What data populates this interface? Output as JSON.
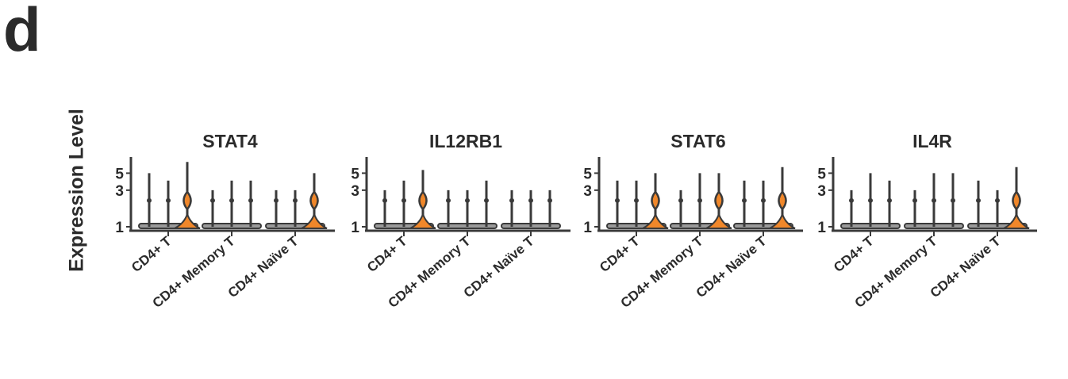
{
  "panel_label": "d",
  "chart_data": {
    "type": "violin",
    "ylabel": "Expression Level",
    "y_scale": "log",
    "y_ticks": [
      1,
      3,
      5
    ],
    "categories": [
      "CD4+ T",
      "CD4+ Memory T",
      "CD4+ Naïve T"
    ],
    "colors": {
      "base": "#3a3a3a",
      "highlight": "#f0872a"
    },
    "panels": [
      {
        "title": "STAT4",
        "groups": [
          {
            "violins": [
              {
                "max": 5,
                "point": 2.2,
                "highlight": false
              },
              {
                "max": 4,
                "point": 2.2,
                "highlight": false
              },
              {
                "max": 7,
                "point": 2.2,
                "highlight": true
              }
            ]
          },
          {
            "violins": [
              {
                "max": 3,
                "point": 2.2,
                "highlight": false
              },
              {
                "max": 4,
                "point": 2.2,
                "highlight": false
              },
              {
                "max": 4,
                "point": 2.2,
                "highlight": false
              }
            ]
          },
          {
            "violins": [
              {
                "max": 3,
                "point": 2.2,
                "highlight": false
              },
              {
                "max": 3,
                "point": 2.2,
                "highlight": false
              },
              {
                "max": 5,
                "point": 2.2,
                "highlight": true
              }
            ]
          }
        ]
      },
      {
        "title": "IL12RB1",
        "groups": [
          {
            "violins": [
              {
                "max": 3,
                "point": 2.2,
                "highlight": false
              },
              {
                "max": 4,
                "point": 2.2,
                "highlight": false
              },
              {
                "max": 5.5,
                "point": 2.2,
                "highlight": true
              }
            ]
          },
          {
            "violins": [
              {
                "max": 3,
                "point": 2.2,
                "highlight": false
              },
              {
                "max": 3,
                "point": 2.2,
                "highlight": false
              },
              {
                "max": 4,
                "point": 2.2,
                "highlight": false
              }
            ]
          },
          {
            "violins": [
              {
                "max": 3,
                "point": 2.2,
                "highlight": false
              },
              {
                "max": 3,
                "point": 2.2,
                "highlight": false
              },
              {
                "max": 3,
                "point": 2.2,
                "highlight": false
              }
            ]
          }
        ]
      },
      {
        "title": "STAT6",
        "groups": [
          {
            "violins": [
              {
                "max": 4,
                "point": 2.2,
                "highlight": false
              },
              {
                "max": 4,
                "point": 2.2,
                "highlight": false
              },
              {
                "max": 5,
                "point": 2.2,
                "highlight": true
              }
            ]
          },
          {
            "violins": [
              {
                "max": 3,
                "point": 2.2,
                "highlight": false
              },
              {
                "max": 5,
                "point": 2.2,
                "highlight": false
              },
              {
                "max": 5,
                "point": 2.2,
                "highlight": true
              }
            ]
          },
          {
            "violins": [
              {
                "max": 4,
                "point": 2.2,
                "highlight": false
              },
              {
                "max": 4,
                "point": 2.2,
                "highlight": false
              },
              {
                "max": 6,
                "point": 2.2,
                "highlight": true
              }
            ]
          }
        ]
      },
      {
        "title": "IL4R",
        "groups": [
          {
            "violins": [
              {
                "max": 3,
                "point": 2.2,
                "highlight": false
              },
              {
                "max": 5,
                "point": 2.2,
                "highlight": false
              },
              {
                "max": 4,
                "point": 2.2,
                "highlight": false
              }
            ]
          },
          {
            "violins": [
              {
                "max": 3,
                "point": 2.2,
                "highlight": false
              },
              {
                "max": 5,
                "point": 2.2,
                "highlight": false
              },
              {
                "max": 5,
                "point": 2.2,
                "highlight": false
              }
            ]
          },
          {
            "violins": [
              {
                "max": 4,
                "point": 2.2,
                "highlight": false
              },
              {
                "max": 3,
                "point": 2.2,
                "highlight": false
              },
              {
                "max": 6,
                "point": 2.2,
                "highlight": true
              }
            ]
          }
        ]
      }
    ]
  }
}
